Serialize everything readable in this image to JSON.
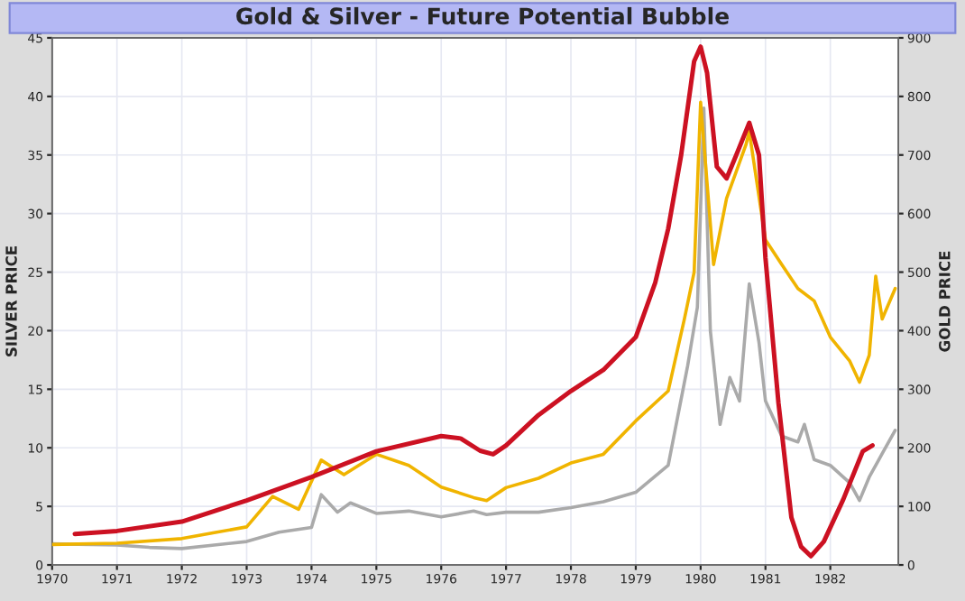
{
  "chart_data": {
    "type": "line",
    "title": "Gold & Silver - Future Potential Bubble",
    "ylabel": "SILVER PRICE",
    "y2label": "GOLD PRICE",
    "xlim": [
      1970,
      1983.05
    ],
    "xticks": [
      1970,
      1971,
      1972,
      1973,
      1974,
      1975,
      1976,
      1977,
      1978,
      1979,
      1980,
      1981,
      1982
    ],
    "ylim": [
      0,
      45
    ],
    "yticks": [
      0,
      5,
      10,
      15,
      20,
      25,
      30,
      35,
      40,
      45
    ],
    "y2lim": [
      0,
      900
    ],
    "y2ticks": [
      0,
      100,
      200,
      300,
      400,
      500,
      600,
      700,
      800,
      900
    ],
    "grid": true,
    "legend": false,
    "series": [
      {
        "color": "#aaaaaa",
        "axis": "y",
        "x": [
          1970,
          1971,
          1971.5,
          1972,
          1972.5,
          1973,
          1973.5,
          1974.0,
          1974.15,
          1974.4,
          1974.6,
          1975.0,
          1975.5,
          1976.0,
          1976.5,
          1976.7,
          1977.0,
          1977.5,
          1978.0,
          1978.5,
          1979.0,
          1979.5,
          1979.8,
          1979.95,
          1980.05,
          1980.15,
          1980.3,
          1980.45,
          1980.6,
          1980.75,
          1980.9,
          1981.0,
          1981.25,
          1981.5,
          1981.6,
          1981.75,
          1982.0,
          1982.3,
          1982.45,
          1982.6,
          1982.8,
          1983.0
        ],
        "values": [
          1.8,
          1.7,
          1.5,
          1.4,
          1.7,
          2.0,
          2.8,
          3.2,
          6.0,
          4.5,
          5.3,
          4.4,
          4.6,
          4.1,
          4.6,
          4.3,
          4.5,
          4.5,
          4.9,
          5.4,
          6.2,
          8.5,
          17,
          22,
          39,
          20,
          12,
          16,
          14,
          24,
          19,
          14,
          11,
          10.5,
          12,
          9,
          8.5,
          7,
          5.5,
          7.5,
          9.5,
          11.5
        ]
      },
      {
        "color": "#f0b400",
        "axis": "y2",
        "x": [
          1970,
          1971,
          1972,
          1972.5,
          1973,
          1973.4,
          1973.8,
          1974.15,
          1974.5,
          1975.0,
          1975.5,
          1976.0,
          1976.5,
          1976.7,
          1977.0,
          1977.5,
          1978.0,
          1978.5,
          1979.0,
          1979.5,
          1979.75,
          1979.9,
          1980.0,
          1980.2,
          1980.4,
          1980.7,
          1980.75,
          1981.0,
          1981.25,
          1981.5,
          1981.75,
          1982.0,
          1982.3,
          1982.45,
          1982.6,
          1982.7,
          1982.8,
          1983.0
        ],
        "values": [
          35,
          37,
          45,
          55,
          65,
          117,
          95,
          179,
          154,
          189,
          170,
          133,
          115,
          110,
          132,
          148,
          174,
          189,
          246,
          297,
          420,
          500,
          790,
          513,
          626,
          718,
          740,
          555,
          513,
          472,
          451,
          389,
          348,
          312,
          358,
          493,
          420,
          472
        ]
      },
      {
        "color": "#cc1122",
        "axis": "y2",
        "x": [
          1970.35,
          1971,
          1972,
          1973,
          1974,
          1975,
          1976,
          1976.3,
          1976.6,
          1976.8,
          1977.0,
          1977.5,
          1978.0,
          1978.5,
          1979.0,
          1979.3,
          1979.5,
          1979.7,
          1979.9,
          1980.0,
          1980.1,
          1980.25,
          1980.4,
          1980.55,
          1980.75,
          1980.9,
          1981.0,
          1981.2,
          1981.4,
          1981.55,
          1981.7,
          1981.9,
          1982.2,
          1982.5,
          1982.65
        ],
        "values": [
          53,
          58,
          74,
          110,
          150,
          194,
          220,
          216,
          195,
          189,
          204,
          256,
          297,
          333,
          389,
          482,
          574,
          700,
          860,
          885,
          840,
          680,
          660,
          700,
          755,
          700,
          524,
          277,
          81,
          31,
          15,
          40,
          112,
          194,
          204
        ]
      }
    ]
  }
}
